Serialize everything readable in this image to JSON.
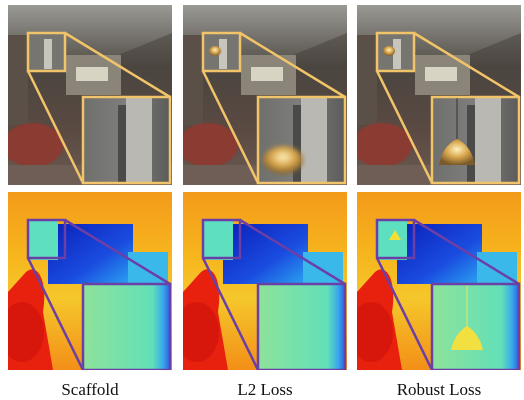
{
  "figure": {
    "columns": [
      {
        "caption": "Scaffold"
      },
      {
        "caption": "L2 Loss"
      },
      {
        "caption": "Robust Loss"
      }
    ]
  }
}
